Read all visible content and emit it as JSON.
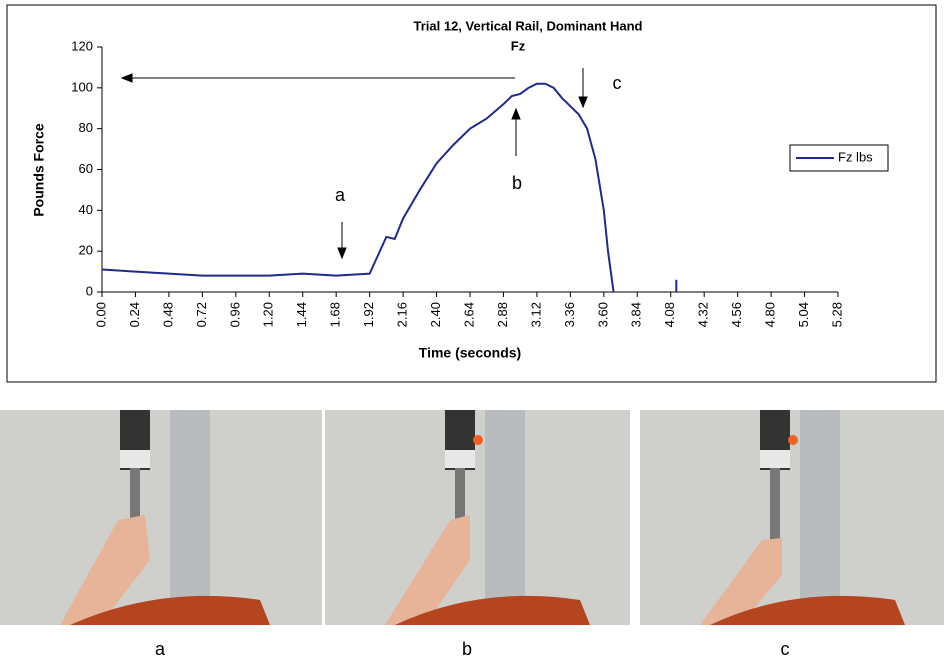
{
  "chart_data": {
    "type": "line",
    "title": "Trial 12, Vertical Rail, Dominant Hand",
    "subtitle": "Fz",
    "x_label": "Time (seconds)",
    "y_label": "Pounds Force",
    "x": [
      0,
      0.24,
      0.48,
      0.72,
      0.96,
      1.2,
      1.44,
      1.68,
      1.92,
      1.98,
      2.04,
      2.1,
      2.16,
      2.28,
      2.4,
      2.52,
      2.64,
      2.76,
      2.88,
      2.94,
      3.0,
      3.06,
      3.12,
      3.18,
      3.24,
      3.3,
      3.36,
      3.42,
      3.48,
      3.54,
      3.6,
      3.63,
      3.67,
      3.9,
      4.12,
      4.12
    ],
    "series": [
      {
        "name": "Fz lbs",
        "color": "#1f2a8c",
        "values": [
          11,
          10,
          9,
          8,
          8,
          8,
          9,
          8,
          9,
          18,
          27,
          26,
          36,
          50,
          63,
          72,
          80,
          85,
          92,
          96,
          97,
          100,
          102,
          102,
          100,
          95,
          91,
          87,
          80,
          65,
          40,
          20,
          0,
          null,
          0,
          6
        ]
      }
    ],
    "xlim": [
      0,
      5.28
    ],
    "xticks": [
      {
        "value": 0,
        "label": "0.00"
      },
      0.24,
      0.48,
      0.72,
      0.96,
      {
        "value": 1.2,
        "label": "1.20"
      },
      1.44,
      1.68,
      1.92,
      2.16,
      {
        "value": 2.4,
        "label": "2.40"
      },
      2.64,
      2.88,
      3.12,
      3.36,
      {
        "value": 3.6,
        "label": "3.60"
      },
      3.84,
      4.08,
      4.32,
      4.56,
      {
        "value": 4.8,
        "label": "4.80"
      },
      5.04,
      5.28
    ],
    "ylim": [
      0,
      120
    ],
    "yticks": [
      0,
      20,
      40,
      60,
      80,
      100,
      120
    ],
    "legend": "right",
    "grid": false,
    "annotations": [
      "a",
      "b",
      "c"
    ]
  },
  "photo_captions": [
    "a",
    "b",
    "c"
  ]
}
